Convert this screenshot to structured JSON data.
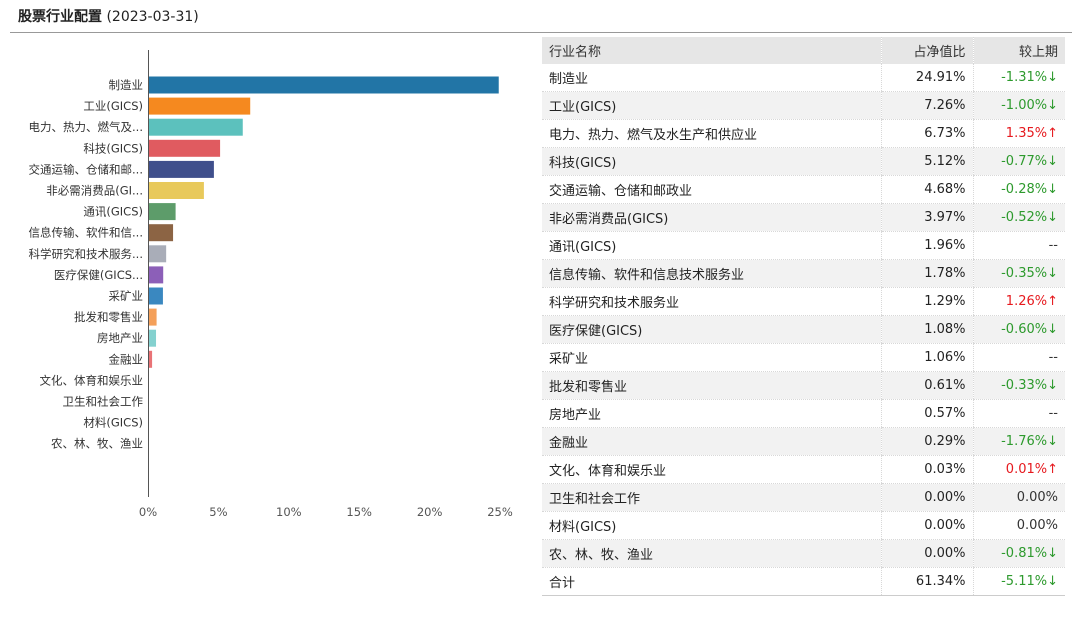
{
  "header": {
    "title": "股票行业配置",
    "date": "(2023-03-31)"
  },
  "colors": {
    "bars": [
      "#2275a6",
      "#f5891f",
      "#5cc1bd",
      "#e05b60",
      "#3f4f8c",
      "#e8c95b",
      "#5d9c6a",
      "#8c6444",
      "#a9adb8",
      "#8c5fb8",
      "#3a88c0",
      "#f4a05a",
      "#84d1cf",
      "#e97376",
      "#6b7bb3",
      "#f0d98a",
      "#8bbd92",
      "#b58a66"
    ]
  },
  "chart_data": {
    "type": "bar",
    "orientation": "horizontal",
    "categories": [
      "制造业",
      "工业(GICS)",
      "电力、热力、燃气及...",
      "科技(GICS)",
      "交通运输、仓储和邮...",
      "非必需消费品(GI...",
      "通讯(GICS)",
      "信息传输、软件和信...",
      "科学研究和技术服务...",
      "医疗保健(GICS...",
      "采矿业",
      "批发和零售业",
      "房地产业",
      "金融业",
      "文化、体育和娱乐业",
      "卫生和社会工作",
      "材料(GICS)",
      "农、林、牧、渔业"
    ],
    "values": [
      24.91,
      7.26,
      6.73,
      5.12,
      4.68,
      3.97,
      1.96,
      1.78,
      1.29,
      1.08,
      1.06,
      0.61,
      0.57,
      0.29,
      0.03,
      0.0,
      0.0,
      0.0
    ],
    "xlim": [
      0,
      25
    ],
    "xticks": [
      "0%",
      "5%",
      "10%",
      "15%",
      "20%",
      "25%"
    ],
    "grid": false
  },
  "table": {
    "headers": {
      "name": "行业名称",
      "pct": "占净值比",
      "chg": "较上期"
    },
    "rows": [
      {
        "name": "制造业",
        "pct": "24.91%",
        "chg": "-1.31%↓",
        "dir": "down"
      },
      {
        "name": "工业(GICS)",
        "pct": "7.26%",
        "chg": "-1.00%↓",
        "dir": "down"
      },
      {
        "name": "电力、热力、燃气及水生产和供应业",
        "pct": "6.73%",
        "chg": "1.35%↑",
        "dir": "up"
      },
      {
        "name": "科技(GICS)",
        "pct": "5.12%",
        "chg": "-0.77%↓",
        "dir": "down"
      },
      {
        "name": "交通运输、仓储和邮政业",
        "pct": "4.68%",
        "chg": "-0.28%↓",
        "dir": "down"
      },
      {
        "name": "非必需消费品(GICS)",
        "pct": "3.97%",
        "chg": "-0.52%↓",
        "dir": "down"
      },
      {
        "name": "通讯(GICS)",
        "pct": "1.96%",
        "chg": "--",
        "dir": "flat"
      },
      {
        "name": "信息传输、软件和信息技术服务业",
        "pct": "1.78%",
        "chg": "-0.35%↓",
        "dir": "down"
      },
      {
        "name": "科学研究和技术服务业",
        "pct": "1.29%",
        "chg": "1.26%↑",
        "dir": "up"
      },
      {
        "name": "医疗保健(GICS)",
        "pct": "1.08%",
        "chg": "-0.60%↓",
        "dir": "down"
      },
      {
        "name": "采矿业",
        "pct": "1.06%",
        "chg": "--",
        "dir": "flat"
      },
      {
        "name": "批发和零售业",
        "pct": "0.61%",
        "chg": "-0.33%↓",
        "dir": "down"
      },
      {
        "name": "房地产业",
        "pct": "0.57%",
        "chg": "--",
        "dir": "flat"
      },
      {
        "name": "金融业",
        "pct": "0.29%",
        "chg": "-1.76%↓",
        "dir": "down"
      },
      {
        "name": "文化、体育和娱乐业",
        "pct": "0.03%",
        "chg": "0.01%↑",
        "dir": "up"
      },
      {
        "name": "卫生和社会工作",
        "pct": "0.00%",
        "chg": "0.00%",
        "dir": "flat"
      },
      {
        "name": "材料(GICS)",
        "pct": "0.00%",
        "chg": "0.00%",
        "dir": "flat"
      },
      {
        "name": "农、林、牧、渔业",
        "pct": "0.00%",
        "chg": "-0.81%↓",
        "dir": "down"
      }
    ],
    "total": {
      "name": "合计",
      "pct": "61.34%",
      "chg": "-5.11%↓",
      "dir": "down"
    }
  }
}
